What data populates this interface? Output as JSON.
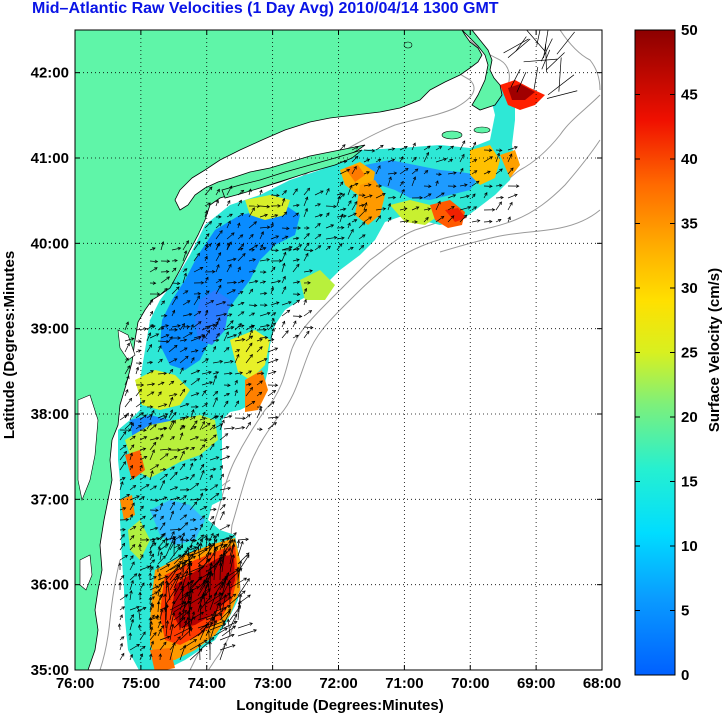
{
  "title": "Mid–Atlantic Raw Velocities (1 Day Avg) 2010/04/14 1300 GMT",
  "x_axis": {
    "label": "Longitude (Degrees:Minutes)",
    "ticks": [
      "76:00",
      "75:00",
      "74:00",
      "73:00",
      "72:00",
      "71:00",
      "70:00",
      "69:00",
      "68:00"
    ]
  },
  "y_axis": {
    "label": "Latitude (Degrees:Minutes",
    "ticks": [
      "35:00",
      "36:00",
      "37:00",
      "38:00",
      "39:00",
      "40:00",
      "41:00",
      "42:00"
    ]
  },
  "colorbar": {
    "label": "Surface Velocity (cm/s)",
    "ticks": [
      "0",
      "5",
      "10",
      "15",
      "20",
      "25",
      "30",
      "35",
      "40",
      "45",
      "50"
    ],
    "min": 0,
    "max": 50,
    "colormap": "jet"
  },
  "colors": {
    "title": "#0a14e6",
    "land": "#5ff5a8",
    "coast": "#000000",
    "bathymetry": "#9a9a9a",
    "grid": "#000000"
  },
  "extent": {
    "lon_min": -76,
    "lon_max": -68,
    "lat_min": 35,
    "lat_max": 42.5
  },
  "grid": "dotted"
}
